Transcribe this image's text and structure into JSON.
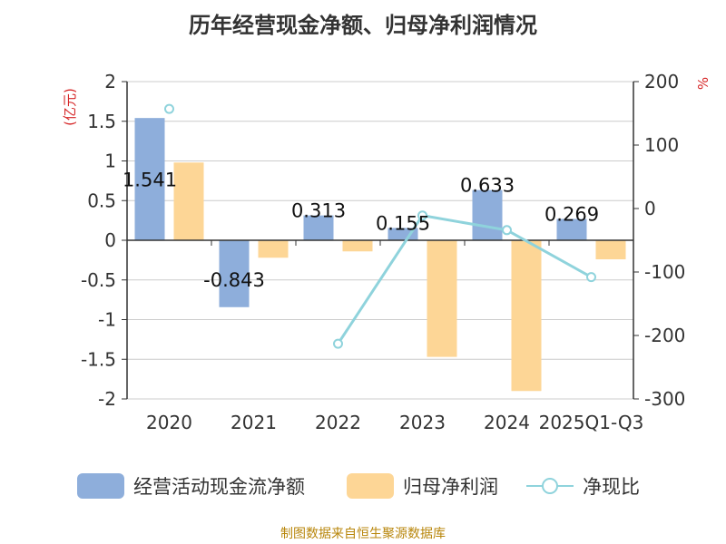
{
  "title": "历年经营现金净额、归母净利润情况",
  "footer": "制图数据来自恒生聚源数据库",
  "colors": {
    "cash_flow": "#8eaedb",
    "net_profit": "#fdd696",
    "ratio": "#8fd3dc",
    "axis": "#333333",
    "grid": "#cccccc",
    "unit": "#d62728"
  },
  "chart_data": {
    "type": "bar",
    "title": "历年经营现金净额、归母净利润情况",
    "categories": [
      "2020",
      "2021",
      "2022",
      "2023",
      "2024",
      "2025Q1-Q3"
    ],
    "series": [
      {
        "name": "经营活动现金流净额",
        "type": "bar",
        "axis": "left",
        "values": [
          1.541,
          -0.843,
          0.313,
          0.155,
          0.633,
          0.269
        ],
        "labels": [
          "1.541",
          "-0.843",
          "0.313",
          "0.155",
          "0.633",
          "0.269"
        ]
      },
      {
        "name": "归母净利润",
        "type": "bar",
        "axis": "left",
        "values": [
          0.98,
          -0.22,
          -0.14,
          -1.47,
          -1.9,
          -0.24
        ]
      },
      {
        "name": "净现比",
        "type": "line",
        "axis": "right",
        "values": [
          157,
          null,
          -213,
          -11,
          -34,
          -108
        ]
      }
    ],
    "y_left": {
      "label": "(亿元)",
      "ylim": [
        -2,
        2
      ],
      "ticks": [
        2,
        1.5,
        1,
        0.5,
        0,
        -0.5,
        -1,
        -1.5,
        -2
      ],
      "tick_labels": [
        "2",
        "1.5",
        "1",
        "0.5",
        "0",
        "-0.5",
        "-1",
        "-1.5",
        "-2"
      ]
    },
    "y_right": {
      "label": "%",
      "ylim": [
        -300,
        200
      ],
      "ticks": [
        200,
        100,
        0,
        -100,
        -200,
        -300
      ],
      "tick_labels": [
        "200",
        "100",
        "0",
        "-100",
        "-200",
        "-300"
      ]
    },
    "grid": true,
    "legend_position": "bottom"
  },
  "legend": [
    {
      "label": "经营活动现金流净额",
      "kind": "bar",
      "color": "#8eaedb"
    },
    {
      "label": "归母净利润",
      "kind": "bar",
      "color": "#fdd696"
    },
    {
      "label": "净现比",
      "kind": "line",
      "color": "#8fd3dc"
    }
  ]
}
